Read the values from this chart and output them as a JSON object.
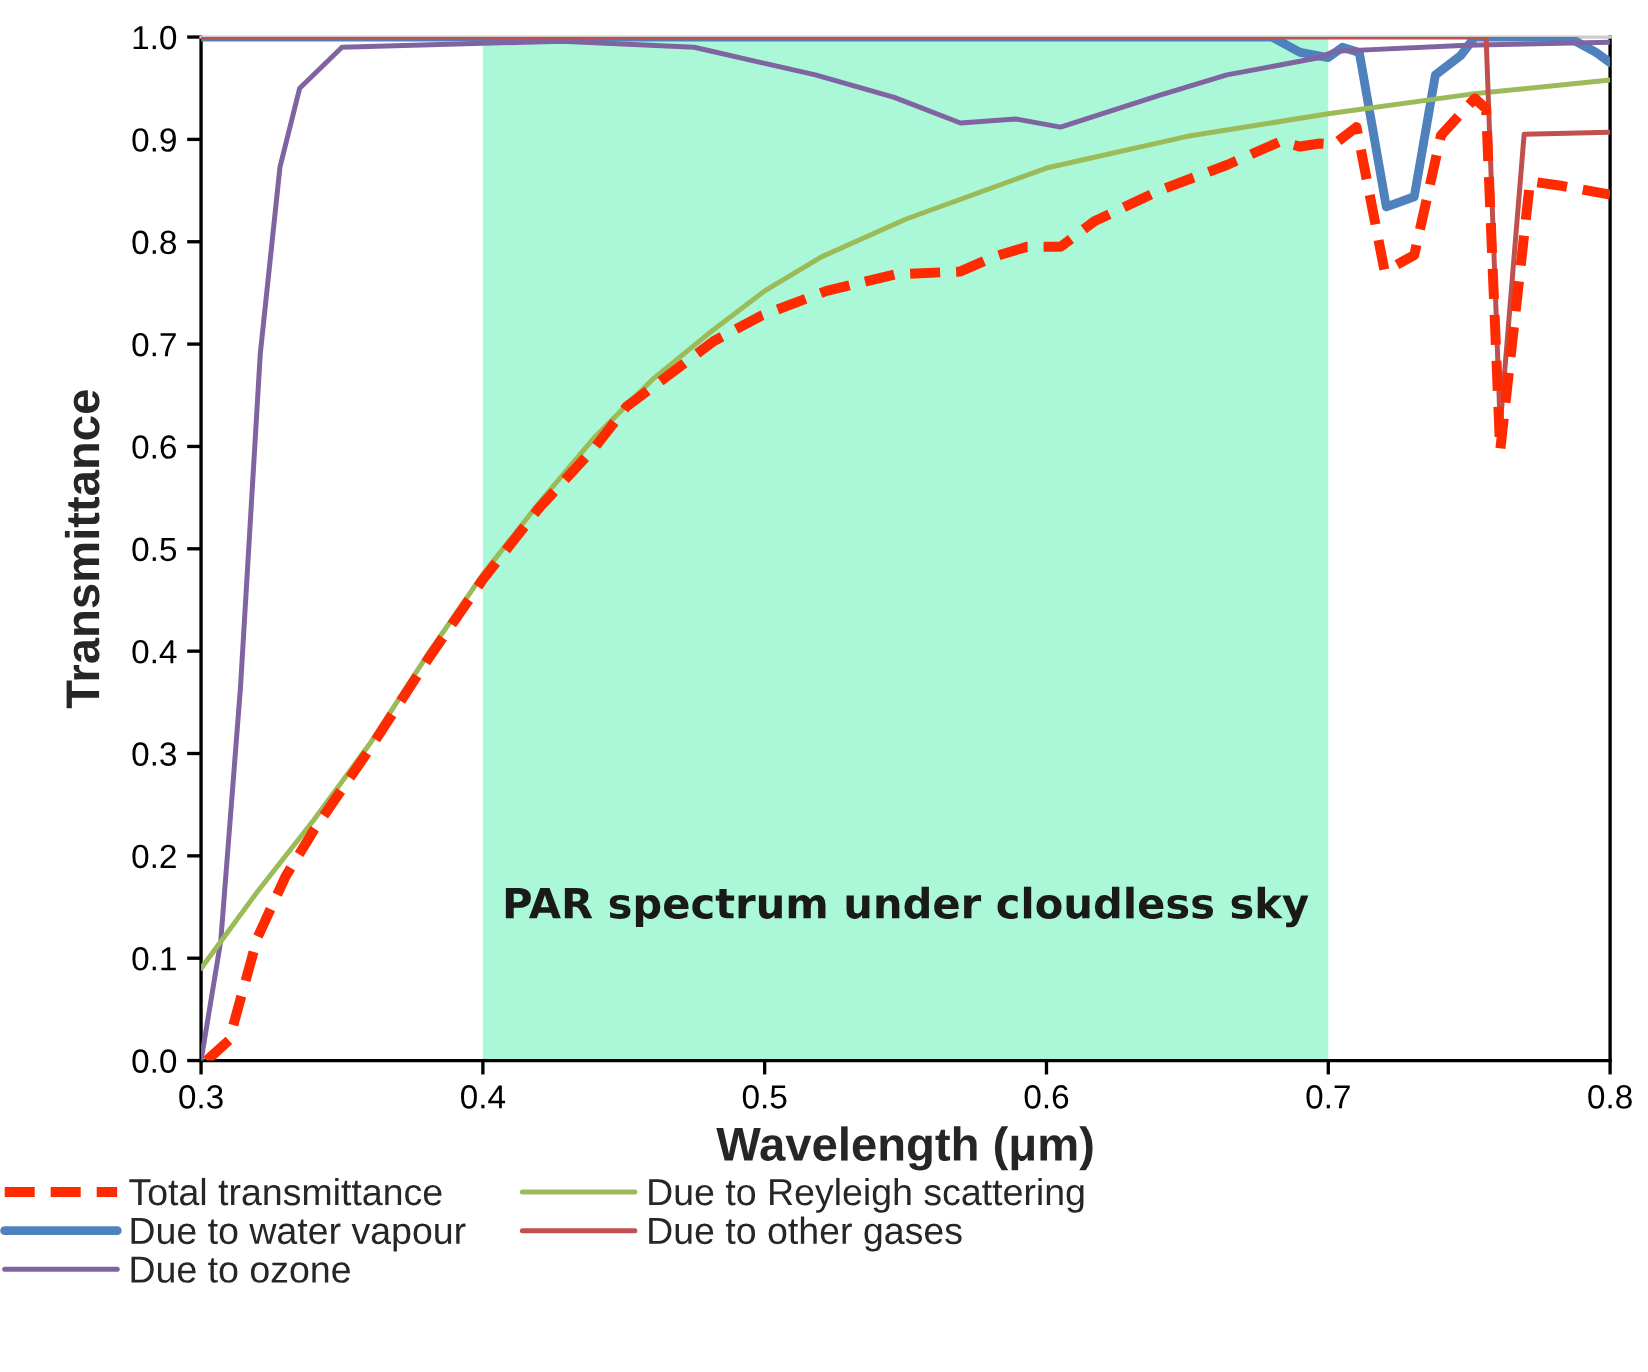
{
  "chart_data": {
    "type": "line",
    "xlabel": "Wavelength (μm)",
    "ylabel": "Transmittance",
    "xlim": [
      0.3,
      0.8
    ],
    "xticks": [
      0.3,
      0.4,
      0.5,
      0.6,
      0.7,
      0.8
    ],
    "ylim": [
      0,
      1
    ],
    "yticks": [
      {
        "value": 0,
        "label": "0.0"
      },
      0.1,
      0.2,
      0.3,
      0.4,
      0.5,
      0.6,
      0.7,
      0.8,
      0.9,
      {
        "value": 1,
        "label": "1.0"
      }
    ],
    "grid": false,
    "legend": "bottom",
    "marker": "none",
    "bands": [
      {
        "axis": "x",
        "from": 0.4,
        "to": 0.7,
        "label": "PAR spectrum under cloudless sky",
        "color": "#aaf8d8"
      }
    ],
    "series": [
      {
        "name": "Total transmittance",
        "color": "#ff2a00",
        "line_style": "dashed",
        "x": [
          0.302,
          0.31,
          0.315,
          0.32,
          0.33,
          0.34,
          0.36,
          0.38,
          0.4,
          0.42,
          0.44,
          0.451,
          0.482,
          0.499,
          0.522,
          0.546,
          0.5695,
          0.581,
          0.593,
          0.605,
          0.617,
          0.64,
          0.664,
          0.683,
          0.69,
          0.697,
          0.702,
          0.71,
          0.72,
          0.7305,
          0.74,
          0.752,
          0.756,
          0.761,
          0.7716,
          0.782,
          0.8
        ],
        "values": [
          0.0,
          0.02,
          0.07,
          0.12,
          0.18,
          0.225,
          0.305,
          0.39,
          0.47,
          0.54,
          0.6,
          0.639,
          0.703,
          0.728,
          0.752,
          0.768,
          0.771,
          0.785,
          0.795,
          0.795,
          0.82,
          0.85,
          0.875,
          0.898,
          0.893,
          0.896,
          0.895,
          0.912,
          0.771,
          0.787,
          0.904,
          0.94,
          0.93,
          0.596,
          0.859,
          0.855,
          0.846
        ]
      },
      {
        "name": "Due to water vapour",
        "color": "#4f81bd",
        "line_style": "solid",
        "x": [
          0.3,
          0.68,
          0.69,
          0.7,
          0.705,
          0.711,
          0.7206,
          0.7305,
          0.738,
          0.747,
          0.752,
          0.785,
          0.795,
          0.8
        ],
        "values": [
          1.0,
          1.0,
          0.985,
          0.98,
          0.99,
          0.985,
          0.834,
          0.844,
          0.963,
          0.982,
          1.0,
          1.0,
          0.985,
          0.975
        ]
      },
      {
        "name": "Due to ozone",
        "color": "#8064a2",
        "line_style": "solid",
        "x": [
          0.3,
          0.307,
          0.314,
          0.321,
          0.328,
          0.335,
          0.35,
          0.428,
          0.475,
          0.518,
          0.546,
          0.5695,
          0.589,
          0.605,
          0.64,
          0.664,
          0.697,
          0.702,
          0.749,
          0.8
        ],
        "values": [
          0.0,
          0.117,
          0.365,
          0.69,
          0.873,
          0.95,
          0.99,
          0.996,
          0.99,
          0.963,
          0.941,
          0.916,
          0.92,
          0.912,
          0.943,
          0.963,
          0.98,
          0.986,
          0.992,
          0.995
        ]
      },
      {
        "name": "Due to Reyleigh scattering",
        "color": "#9bbb59",
        "line_style": "solid",
        "x": [
          0.3,
          0.32,
          0.34,
          0.36,
          0.38,
          0.4,
          0.42,
          0.44,
          0.46,
          0.48,
          0.5,
          0.52,
          0.55,
          0.6,
          0.65,
          0.7,
          0.75,
          0.8
        ],
        "values": [
          0.09,
          0.165,
          0.235,
          0.31,
          0.395,
          0.475,
          0.545,
          0.61,
          0.665,
          0.71,
          0.752,
          0.785,
          0.822,
          0.872,
          0.903,
          0.925,
          0.944,
          0.958
        ]
      },
      {
        "name": "Due to other gases",
        "color": "#c0504d",
        "line_style": "solid",
        "x": [
          0.3,
          0.756,
          0.761,
          0.7695,
          0.8
        ],
        "values": [
          1.0,
          1.0,
          0.62,
          0.905,
          0.907
        ]
      }
    ]
  }
}
